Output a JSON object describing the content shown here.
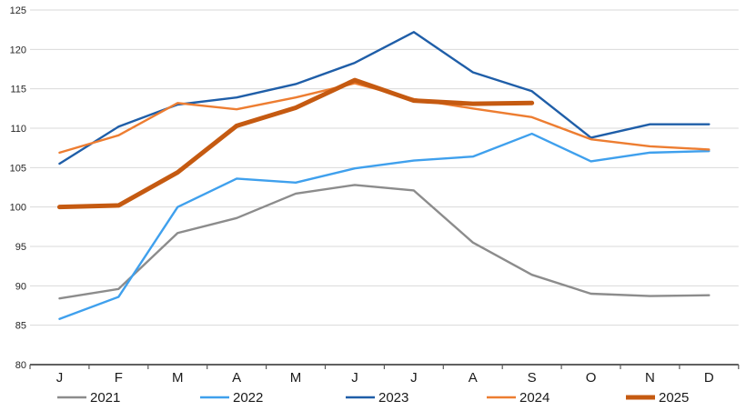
{
  "chart_data": {
    "type": "line",
    "title": "",
    "categories": [
      "J",
      "F",
      "M",
      "A",
      "M",
      "J",
      "J",
      "A",
      "S",
      "O",
      "N",
      "D"
    ],
    "series": [
      {
        "name": "2021",
        "color": "#8C8C8C",
        "line_width": 2.4,
        "values": [
          88.4,
          89.6,
          96.7,
          98.6,
          101.7,
          102.8,
          102.1,
          95.5,
          91.4,
          89.0,
          88.7,
          88.8
        ]
      },
      {
        "name": "2022",
        "color": "#3FA0ED",
        "line_width": 2.4,
        "values": [
          85.8,
          88.6,
          100.0,
          103.6,
          103.1,
          104.9,
          105.9,
          106.4,
          109.3,
          105.8,
          106.9,
          107.1
        ]
      },
      {
        "name": "2023",
        "color": "#1F5EA8",
        "line_width": 2.4,
        "values": [
          105.5,
          110.2,
          113.0,
          113.9,
          115.6,
          118.3,
          122.2,
          117.1,
          114.7,
          108.8,
          110.5,
          110.5
        ]
      },
      {
        "name": "2024",
        "color": "#ED7D31",
        "line_width": 2.4,
        "values": [
          106.9,
          109.1,
          113.2,
          112.4,
          113.9,
          115.7,
          113.7,
          112.5,
          111.4,
          108.6,
          107.7,
          107.3
        ]
      },
      {
        "name": "2025",
        "color": "#C55A11",
        "line_width": 5,
        "values": [
          100.0,
          100.2,
          104.4,
          110.3,
          112.6,
          116.1,
          113.5,
          113.1,
          113.2,
          null,
          null,
          null
        ]
      }
    ],
    "xlabel": "",
    "ylabel": "",
    "ylim": [
      80,
      125
    ],
    "ytick_step": 5,
    "ytick_labels": [
      "80",
      "85",
      "90",
      "95",
      "100",
      "105",
      "110",
      "115",
      "120",
      "125"
    ],
    "grid": true,
    "gridline_color": "#D9D9D9",
    "axis_color": "#000000",
    "tick_color": "#595959",
    "tick_label_color": "#262626",
    "legend_position": "bottom",
    "legend_labels": [
      "2021",
      "2022",
      "2023",
      "2024",
      "2025"
    ]
  }
}
